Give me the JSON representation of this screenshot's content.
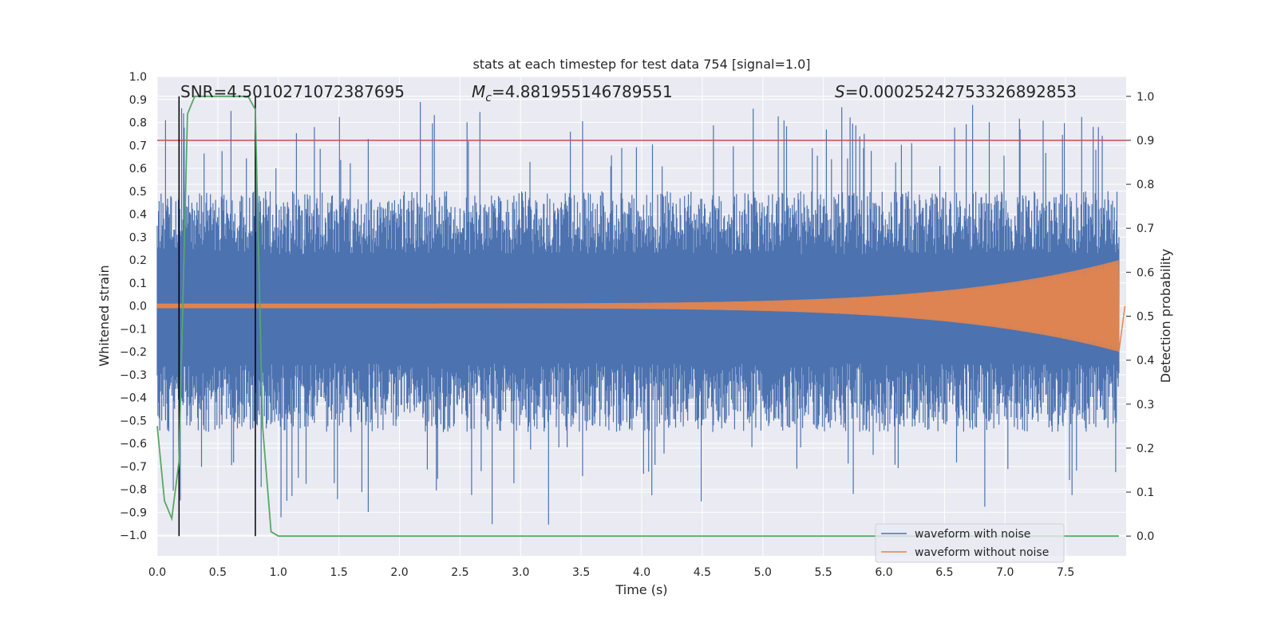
{
  "chart_data": {
    "type": "line",
    "title": "stats at each timestep for test data 754 [signal=1.0]",
    "xlabel": "Time (s)",
    "ylabel_left": "Whitened strain",
    "ylabel_right": "Detection probability",
    "xlim": [
      0.0,
      8.0
    ],
    "ylim_left": [
      -1.09,
      1.0
    ],
    "ylim_right": [
      -0.045,
      1.045
    ],
    "x_ticks": [
      "0.0",
      "0.5",
      "1.0",
      "1.5",
      "2.0",
      "2.5",
      "3.0",
      "3.5",
      "4.0",
      "4.5",
      "5.0",
      "5.5",
      "6.0",
      "6.5",
      "7.0",
      "7.5"
    ],
    "y_left_ticks": [
      "1.0",
      "0.9",
      "0.8",
      "0.7",
      "0.6",
      "0.5",
      "0.4",
      "0.3",
      "0.2",
      "0.1",
      "0.0",
      "−0.1",
      "−0.2",
      "−0.3",
      "−0.4",
      "−0.5",
      "−0.6",
      "−0.7",
      "−0.8",
      "−0.9",
      "−1.0"
    ],
    "y_right_ticks": [
      "1.0",
      "0.9",
      "0.8",
      "0.7",
      "0.6",
      "0.5",
      "0.4",
      "0.3",
      "0.2",
      "0.1",
      "0.0"
    ],
    "annotations": {
      "snr": "SNR=4.5010271072387695",
      "mc_symbol": "M",
      "mc_sub": "c",
      "mc_value": "=4.881955146789551",
      "s_symbol": "S",
      "s_value": "=0.00025242753326892853"
    },
    "legend": [
      {
        "label": "waveform with noise",
        "color": "#4c72b0"
      },
      {
        "label": "waveform without noise",
        "color": "#dd8452"
      }
    ],
    "threshold": {
      "value_right_axis": 0.9,
      "color": "#c44e52"
    },
    "detection_window_s": [
      0.18,
      0.81
    ],
    "detection_probability": {
      "color": "#55a868",
      "x": [
        0.0,
        0.06,
        0.12,
        0.18,
        0.25,
        0.31,
        0.37,
        0.44,
        0.5,
        0.56,
        0.62,
        0.69,
        0.75,
        0.81,
        0.87,
        0.94,
        1.0,
        7.94
      ],
      "y": [
        0.25,
        0.08,
        0.04,
        0.17,
        0.96,
        1.0,
        1.0,
        1.0,
        1.0,
        1.0,
        1.0,
        1.0,
        1.0,
        0.97,
        0.25,
        0.01,
        0.0,
        0.0
      ]
    },
    "noise_series": {
      "color": "#4c72b0",
      "duration_s": 7.94,
      "typical_peak": 0.5,
      "max_peak": 0.9,
      "min_trough": -1.0
    },
    "clean_series": {
      "color": "#dd8452",
      "duration_s": 7.94,
      "amplitude_start": 0.01,
      "amplitude_end": 0.2
    }
  }
}
